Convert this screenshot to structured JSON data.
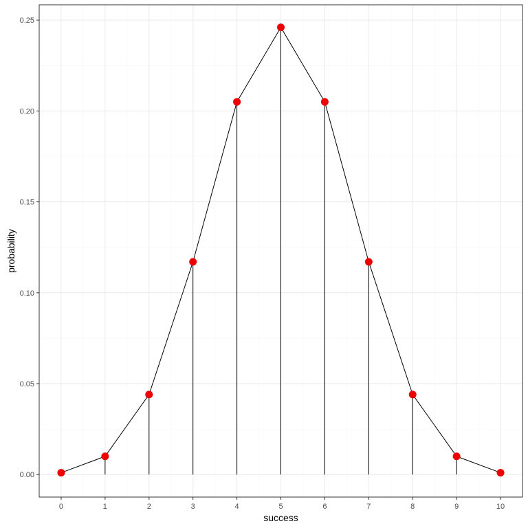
{
  "chart_data": {
    "type": "line",
    "title": "",
    "xlabel": "success",
    "ylabel": "probability",
    "x": [
      0,
      1,
      2,
      3,
      4,
      5,
      6,
      7,
      8,
      9,
      10
    ],
    "series": [
      {
        "values": [
          0.001,
          0.01,
          0.044,
          0.117,
          0.205,
          0.246,
          0.205,
          0.117,
          0.044,
          0.01,
          0.001
        ]
      }
    ],
    "xlim": [
      -0.5,
      10.5
    ],
    "ylim": [
      -0.0124,
      0.2584
    ],
    "x_ticks": [
      "0",
      "1",
      "2",
      "3",
      "4",
      "5",
      "6",
      "7",
      "8",
      "9",
      "10"
    ],
    "y_ticks": [
      "0.00",
      "0.05",
      "0.10",
      "0.15",
      "0.20",
      "0.25"
    ],
    "y_tick_values": [
      0,
      0.05,
      0.1,
      0.15,
      0.2,
      0.25
    ],
    "grid": true,
    "legend": "none",
    "vertical_stems": true,
    "colors": {
      "points": "#ee0000",
      "line": "#000000",
      "stems": "#000000",
      "grid_major": "#ebebeb",
      "grid_minor": "#f5f5f5",
      "panel_border": "#333333"
    }
  }
}
